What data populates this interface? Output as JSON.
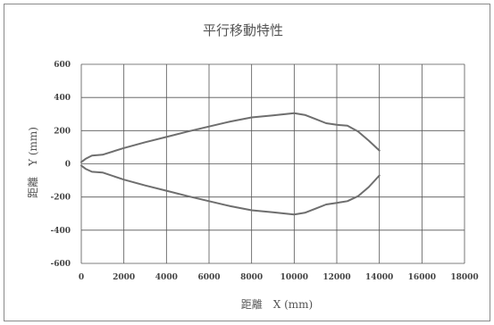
{
  "chart_data": {
    "type": "line",
    "title": "平行移動特性",
    "xlabel": "距離　X (mm)",
    "ylabel": "距離　Y (mm)",
    "xlim": [
      0,
      18000
    ],
    "ylim": [
      -600,
      600
    ],
    "xticks": [
      0,
      2000,
      4000,
      6000,
      8000,
      10000,
      12000,
      14000,
      16000,
      18000
    ],
    "yticks": [
      -600,
      -400,
      -200,
      0,
      200,
      400,
      600
    ],
    "grid": true,
    "legend": "none",
    "line_color": "#6e6e6e",
    "series": [
      {
        "x": [
          0,
          200,
          500,
          1000,
          2000,
          3000,
          4000,
          5000,
          6000,
          7000,
          8000,
          9000,
          10000,
          10500,
          11000,
          11500,
          12000,
          12500,
          13000,
          13500,
          14000
        ],
        "y": [
          10,
          30,
          50,
          55,
          95,
          130,
          162,
          195,
          225,
          255,
          280,
          292,
          305,
          295,
          270,
          245,
          235,
          230,
          195,
          140,
          80
        ]
      },
      {
        "x": [
          0,
          200,
          500,
          1000,
          2000,
          3000,
          4000,
          5000,
          6000,
          7000,
          8000,
          9000,
          10000,
          10500,
          11000,
          11500,
          12000,
          12500,
          13000,
          13500,
          14000
        ],
        "y": [
          -10,
          -30,
          -48,
          -52,
          -95,
          -130,
          -162,
          -195,
          -225,
          -255,
          -280,
          -292,
          -305,
          -295,
          -270,
          -245,
          -235,
          -225,
          -195,
          -140,
          -70
        ]
      }
    ]
  }
}
